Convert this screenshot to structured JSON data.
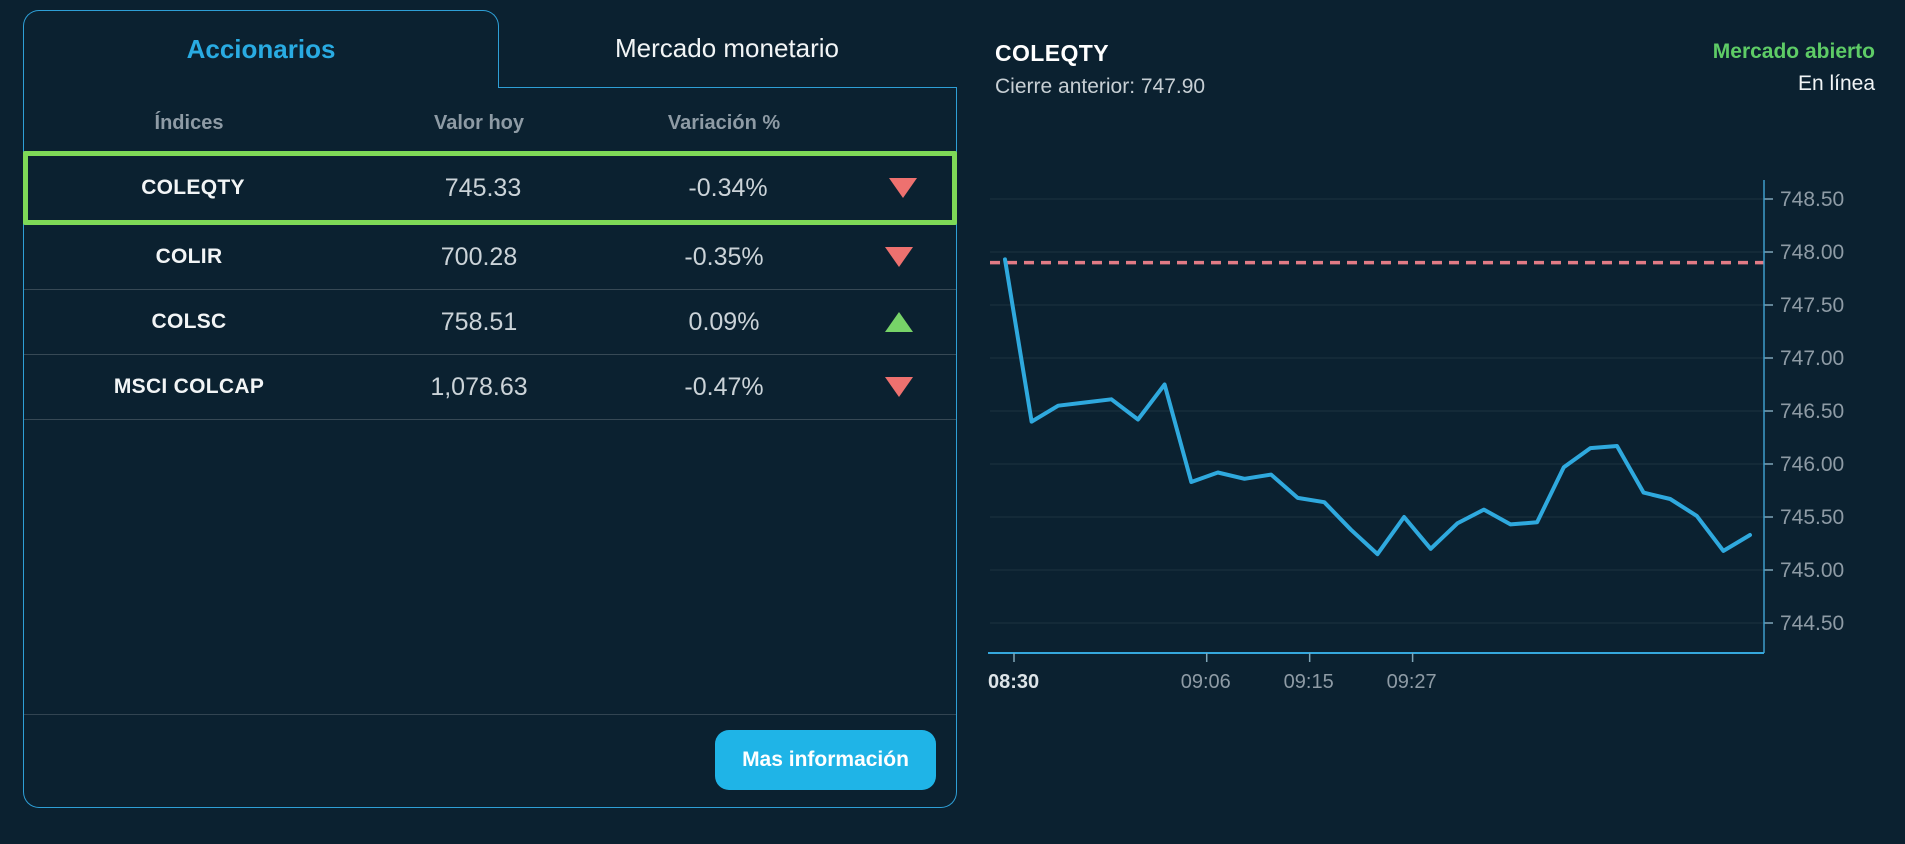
{
  "tabs": {
    "accionarios": "Accionarios",
    "mercado_monetario": "Mercado monetario"
  },
  "table": {
    "headers": [
      "Índices",
      "Valor hoy",
      "Variación %"
    ],
    "rows": [
      {
        "name": "COLEQTY",
        "value": "745.33",
        "change": "-0.34%",
        "direction": "down",
        "selected": true
      },
      {
        "name": "COLIR",
        "value": "700.28",
        "change": "-0.35%",
        "direction": "down",
        "selected": false
      },
      {
        "name": "COLSC",
        "value": "758.51",
        "change": "0.09%",
        "direction": "up",
        "selected": false
      },
      {
        "name": "MSCI COLCAP",
        "value": "1,078.63",
        "change": "-0.47%",
        "direction": "down",
        "selected": false
      }
    ]
  },
  "footer": {
    "more_info_label": "Mas información"
  },
  "chart_header": {
    "symbol": "COLEQTY",
    "previous_close_text": "Cierre anterior: 747.90",
    "market_status": "Mercado abierto",
    "connection_status": "En línea"
  },
  "chart_data": {
    "type": "line",
    "title": "COLEQTY intraday price",
    "previous_close": 747.9,
    "ylim": [
      744.2,
      748.9
    ],
    "grid": "horizontal",
    "legend": "none",
    "y_ticks": [
      {
        "value": 748.5,
        "label": "748.50"
      },
      {
        "value": 748.0,
        "label": "748.00"
      },
      {
        "value": 747.5,
        "label": "747.50"
      },
      {
        "value": 747.0,
        "label": "747.00"
      },
      {
        "value": 746.5,
        "label": "746.50"
      },
      {
        "value": 746.0,
        "label": "746.00"
      },
      {
        "value": 745.5,
        "label": "745.50"
      },
      {
        "value": 745.0,
        "label": "745.00"
      },
      {
        "value": 744.5,
        "label": "744.50"
      }
    ],
    "x_ticks": [
      {
        "label": "08:30",
        "pos": 0.031,
        "bold": true
      },
      {
        "label": "09:06",
        "pos": 0.28,
        "bold": false
      },
      {
        "label": "09:15",
        "pos": 0.413,
        "bold": false
      },
      {
        "label": "09:27",
        "pos": 0.546,
        "bold": false
      }
    ],
    "values": [
      747.93,
      746.4,
      746.55,
      746.58,
      746.61,
      746.42,
      746.75,
      745.83,
      745.92,
      745.86,
      745.9,
      745.68,
      745.64,
      745.38,
      745.15,
      745.5,
      745.2,
      745.44,
      745.57,
      745.43,
      745.45,
      745.97,
      746.15,
      746.17,
      745.73,
      745.67,
      745.51,
      745.18,
      745.33
    ]
  },
  "colors": {
    "background": "#0B2130",
    "panel_border": "#2E9FD6",
    "accent_blue": "#29ABE2",
    "button_bg": "#1FB4E7",
    "selection_lime": "#7ED957",
    "up_green": "#77D368",
    "down_red": "#EE716F",
    "market_open_green": "#5ECC66",
    "line_blue": "#2FA9DE",
    "previous_close_pink": "#E27B85",
    "axis_blue": "#3E9CC9",
    "text_white": "#F2F5F6",
    "text_gray": "#8E9BA5",
    "value_gray": "#CBD3D8"
  }
}
